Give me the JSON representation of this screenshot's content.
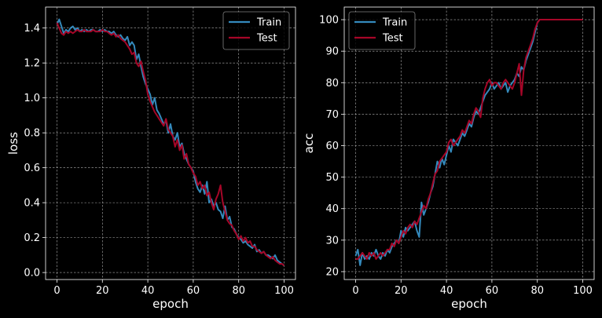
{
  "chart_data": [
    {
      "type": "line",
      "xlabel": "epoch",
      "ylabel": "loss",
      "xlim": [
        -5,
        105
      ],
      "ylim": [
        -0.04,
        1.52
      ],
      "xticks": [
        0,
        20,
        40,
        60,
        80,
        100
      ],
      "xtick_labels": [
        "0",
        "20",
        "40",
        "60",
        "80",
        "100"
      ],
      "yticks": [
        0.0,
        0.2,
        0.4,
        0.6,
        0.8,
        1.0,
        1.2,
        1.4
      ],
      "ytick_labels": [
        "0.0",
        "0.2",
        "0.4",
        "0.6",
        "0.8",
        "1.0",
        "1.2",
        "1.4"
      ],
      "grid": true,
      "legend": "top-right",
      "x": [
        0,
        1,
        2,
        3,
        4,
        5,
        6,
        7,
        8,
        9,
        10,
        11,
        12,
        13,
        14,
        15,
        16,
        17,
        18,
        19,
        20,
        21,
        22,
        23,
        24,
        25,
        26,
        27,
        28,
        29,
        30,
        31,
        32,
        33,
        34,
        35,
        36,
        37,
        38,
        39,
        40,
        41,
        42,
        43,
        44,
        45,
        46,
        47,
        48,
        49,
        50,
        51,
        52,
        53,
        54,
        55,
        56,
        57,
        58,
        59,
        60,
        61,
        62,
        63,
        64,
        65,
        66,
        67,
        68,
        69,
        70,
        71,
        72,
        73,
        74,
        75,
        76,
        77,
        78,
        79,
        80,
        81,
        82,
        83,
        84,
        85,
        86,
        87,
        88,
        89,
        90,
        91,
        92,
        93,
        94,
        95,
        96,
        97,
        98,
        99,
        100
      ],
      "series": [
        {
          "name": "Train",
          "color": "#348ABD",
          "values": [
            1.42,
            1.45,
            1.41,
            1.37,
            1.39,
            1.38,
            1.4,
            1.41,
            1.39,
            1.4,
            1.38,
            1.39,
            1.38,
            1.39,
            1.38,
            1.39,
            1.39,
            1.38,
            1.38,
            1.39,
            1.38,
            1.39,
            1.38,
            1.38,
            1.37,
            1.38,
            1.36,
            1.35,
            1.36,
            1.34,
            1.33,
            1.35,
            1.3,
            1.32,
            1.3,
            1.22,
            1.25,
            1.18,
            1.12,
            1.08,
            1.05,
            1.02,
            0.96,
            1.0,
            0.93,
            0.91,
            0.88,
            0.85,
            0.87,
            0.8,
            0.85,
            0.78,
            0.76,
            0.8,
            0.72,
            0.74,
            0.68,
            0.65,
            0.62,
            0.6,
            0.58,
            0.52,
            0.48,
            0.46,
            0.5,
            0.45,
            0.52,
            0.4,
            0.42,
            0.38,
            0.4,
            0.36,
            0.35,
            0.31,
            0.38,
            0.3,
            0.32,
            0.26,
            0.25,
            0.22,
            0.2,
            0.19,
            0.17,
            0.18,
            0.16,
            0.15,
            0.14,
            0.16,
            0.12,
            0.13,
            0.11,
            0.12,
            0.1,
            0.1,
            0.09,
            0.08,
            0.1,
            0.07,
            0.06,
            0.05,
            0.04
          ]
        },
        {
          "name": "Test",
          "color": "#A60628",
          "values": [
            1.43,
            1.4,
            1.37,
            1.36,
            1.38,
            1.37,
            1.38,
            1.37,
            1.38,
            1.39,
            1.38,
            1.38,
            1.39,
            1.38,
            1.38,
            1.38,
            1.39,
            1.38,
            1.38,
            1.38,
            1.39,
            1.38,
            1.38,
            1.37,
            1.36,
            1.37,
            1.35,
            1.36,
            1.34,
            1.33,
            1.32,
            1.3,
            1.28,
            1.25,
            1.26,
            1.2,
            1.18,
            1.21,
            1.15,
            1.1,
            1.02,
            0.98,
            0.95,
            0.92,
            0.9,
            0.88,
            0.86,
            0.84,
            0.88,
            0.82,
            0.8,
            0.78,
            0.72,
            0.76,
            0.7,
            0.73,
            0.65,
            0.68,
            0.62,
            0.6,
            0.57,
            0.55,
            0.5,
            0.52,
            0.48,
            0.5,
            0.44,
            0.46,
            0.4,
            0.36,
            0.42,
            0.45,
            0.5,
            0.4,
            0.35,
            0.3,
            0.28,
            0.27,
            0.24,
            0.22,
            0.19,
            0.21,
            0.18,
            0.2,
            0.17,
            0.18,
            0.15,
            0.15,
            0.13,
            0.12,
            0.11,
            0.12,
            0.1,
            0.09,
            0.08,
            0.09,
            0.07,
            0.06,
            0.05,
            0.05,
            0.04
          ]
        }
      ]
    },
    {
      "type": "line",
      "xlabel": "epoch",
      "ylabel": "acc",
      "xlim": [
        -5,
        105
      ],
      "ylim": [
        17.5,
        104
      ],
      "xticks": [
        0,
        20,
        40,
        60,
        80,
        100
      ],
      "xtick_labels": [
        "0",
        "20",
        "40",
        "60",
        "80",
        "100"
      ],
      "yticks": [
        20,
        30,
        40,
        50,
        60,
        70,
        80,
        90,
        100
      ],
      "ytick_labels": [
        "20",
        "30",
        "40",
        "50",
        "60",
        "70",
        "80",
        "90",
        "100"
      ],
      "grid": true,
      "legend": "top-left",
      "x": [
        0,
        1,
        2,
        3,
        4,
        5,
        6,
        7,
        8,
        9,
        10,
        11,
        12,
        13,
        14,
        15,
        16,
        17,
        18,
        19,
        20,
        21,
        22,
        23,
        24,
        25,
        26,
        27,
        28,
        29,
        30,
        31,
        32,
        33,
        34,
        35,
        36,
        37,
        38,
        39,
        40,
        41,
        42,
        43,
        44,
        45,
        46,
        47,
        48,
        49,
        50,
        51,
        52,
        53,
        54,
        55,
        56,
        57,
        58,
        59,
        60,
        61,
        62,
        63,
        64,
        65,
        66,
        67,
        68,
        69,
        70,
        71,
        72,
        73,
        74,
        75,
        76,
        77,
        78,
        79,
        80,
        81,
        82,
        83,
        84,
        85,
        86,
        87,
        88,
        89,
        90,
        91,
        92,
        93,
        94,
        95,
        96,
        97,
        98,
        99,
        100
      ],
      "series": [
        {
          "name": "Train",
          "color": "#348ABD",
          "values": [
            25,
            27,
            22,
            26,
            24,
            25,
            24,
            26,
            25,
            27,
            25,
            24,
            26,
            25,
            27,
            26,
            28,
            29,
            30,
            29,
            33,
            31,
            34,
            33,
            34,
            35,
            36,
            33,
            31,
            42,
            38,
            40,
            42,
            45,
            47,
            51,
            55,
            53,
            56,
            54,
            57,
            60,
            58,
            62,
            61,
            60,
            62,
            64,
            63,
            65,
            67,
            66,
            69,
            71,
            70,
            72,
            74,
            76,
            77,
            78,
            80,
            78,
            79,
            80,
            78,
            79,
            80,
            77,
            79,
            80,
            81,
            83,
            82,
            85,
            84,
            87,
            89,
            91,
            93,
            96,
            99,
            100,
            100,
            100,
            100,
            100,
            100,
            100,
            100,
            100,
            100,
            100,
            100,
            100,
            100,
            100,
            100,
            100,
            100,
            100,
            100
          ]
        },
        {
          "name": "Test",
          "color": "#A60628",
          "values": [
            24,
            24,
            25,
            26,
            25,
            24,
            26,
            25,
            26,
            24,
            25,
            26,
            25,
            26,
            27,
            27,
            29,
            28,
            30,
            29,
            31,
            33,
            32,
            34,
            35,
            34,
            36,
            35,
            37,
            39,
            41,
            40,
            43,
            45,
            48,
            51,
            52,
            55,
            56,
            57,
            58,
            61,
            62,
            60,
            61,
            62,
            63,
            65,
            64,
            66,
            68,
            67,
            70,
            72,
            71,
            69,
            75,
            78,
            80,
            81,
            79,
            80,
            80,
            79,
            78,
            80,
            81,
            80,
            79,
            78,
            80,
            83,
            86,
            76,
            84,
            88,
            90,
            92,
            94,
            97,
            99,
            100,
            100,
            100,
            100,
            100,
            100,
            100,
            100,
            100,
            100,
            100,
            100,
            100,
            100,
            100,
            100,
            100,
            100,
            100,
            100
          ]
        }
      ]
    }
  ]
}
